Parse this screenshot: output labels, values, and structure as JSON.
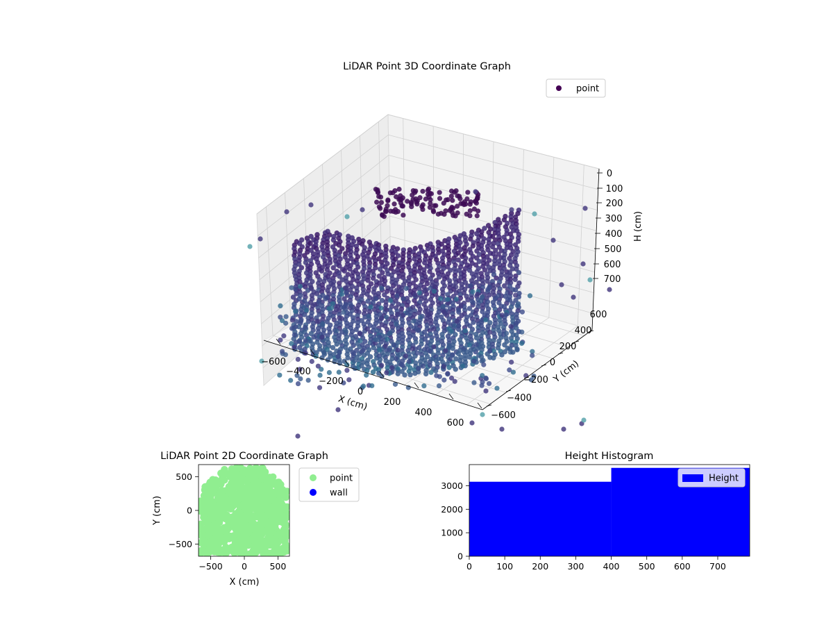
{
  "chart_data": [
    {
      "type": "scatter3d",
      "title": "LiDAR Point 3D Coordinate Graph",
      "xlabel": "X (cm)",
      "ylabel": "Y (cm)",
      "zlabel": "H (cm)",
      "xlim": [
        -650,
        650
      ],
      "ylim": [
        -650,
        650
      ],
      "zlim": [
        0,
        780
      ],
      "z_inverted": true,
      "x_ticks": [
        "−600",
        "−400",
        "−200",
        "0",
        "200",
        "400",
        "600"
      ],
      "y_ticks": [
        "−600",
        "−400",
        "−200",
        "0",
        "200",
        "400",
        "600"
      ],
      "z_ticks": [
        "0",
        "100",
        "200",
        "300",
        "400",
        "500",
        "600",
        "700"
      ],
      "legend": [
        {
          "label": "point",
          "color": "#440154"
        }
      ],
      "legend_position": "upper-right",
      "grid": true,
      "colormap": "viridis"
    },
    {
      "type": "scatter",
      "title": "LiDAR Point 2D Coordinate Graph",
      "xlabel": "X (cm)",
      "ylabel": "Y (cm)",
      "xlim": [
        -680,
        680
      ],
      "ylim": [
        -680,
        680
      ],
      "x_ticks": [
        "−500",
        "0",
        "500"
      ],
      "y_ticks": [
        "−500",
        "0",
        "500"
      ],
      "series": [
        {
          "name": "point",
          "color": "#90ee90"
        },
        {
          "name": "wall",
          "color": "#0000ff"
        }
      ],
      "legend_position": "outside-right"
    },
    {
      "type": "bar",
      "title": "Height Histogram",
      "bins": [
        [
          0,
          400
        ],
        [
          400,
          790
        ]
      ],
      "values": [
        3170,
        3760
      ],
      "xlim": [
        0,
        790
      ],
      "ylim": [
        0,
        3900
      ],
      "x_ticks": [
        "0",
        "100",
        "200",
        "300",
        "400",
        "500",
        "600",
        "700"
      ],
      "y_ticks": [
        "0",
        "1000",
        "2000",
        "3000"
      ],
      "series": [
        {
          "name": "Height",
          "color": "#0000ff"
        }
      ],
      "legend_position": "upper-right"
    }
  ]
}
